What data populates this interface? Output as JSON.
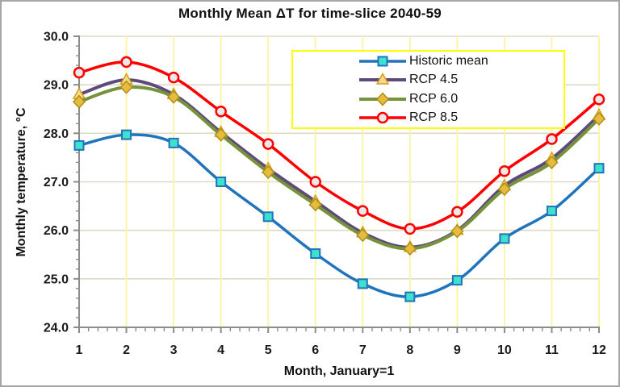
{
  "window": {
    "background": "#FFFFFF",
    "border_color": "#A6A6A6"
  },
  "chart_data": {
    "type": "line",
    "title": "Monthly Mean ΔT for time-slice 2040-59",
    "xlabel": "Month, January=1",
    "ylabel": "Monthly temperature, °C",
    "x": [
      1,
      2,
      3,
      4,
      5,
      6,
      7,
      8,
      9,
      10,
      11,
      12
    ],
    "xtick_labels": [
      "1",
      "2",
      "3",
      "4",
      "5",
      "6",
      "7",
      "8",
      "9",
      "10",
      "11",
      "12"
    ],
    "xlim": [
      1,
      12
    ],
    "ylim": [
      24.0,
      30.0
    ],
    "yticks": [
      24,
      25,
      26,
      27,
      28,
      29,
      30
    ],
    "ytick_labels": [
      "24.0",
      "25.0",
      "26.0",
      "27.0",
      "28.0",
      "29.0",
      "30.0"
    ],
    "y_minor_step": 0.2,
    "x_minor_step": 0.2,
    "grid": {
      "horizontal_on": true,
      "vertical_on": true,
      "horizontal_color": "#DEDAC6",
      "vertical_color": "#FBF4A0",
      "axis_color": "#8C8C8C",
      "tick_color": "#8C8C8C"
    },
    "legend": {
      "position": "top-right",
      "border_color": "#FFFF00",
      "background": "#FFFFFF"
    },
    "series": [
      {
        "name": "Historic mean",
        "line_color": "#2074BC",
        "line_width": 3.5,
        "marker": "square",
        "marker_fill": "#3FE0CE",
        "marker_stroke": "#2074BC",
        "values": [
          27.75,
          27.97,
          27.8,
          27.0,
          26.28,
          25.52,
          24.9,
          24.63,
          24.97,
          25.83,
          26.4,
          27.28
        ]
      },
      {
        "name": "RCP 4.5",
        "line_color": "#5F497A",
        "line_width": 4,
        "marker": "triangle",
        "marker_fill": "#F7D98C",
        "marker_stroke": "#D4A017",
        "values": [
          28.8,
          29.1,
          28.8,
          28.02,
          27.27,
          26.6,
          25.95,
          25.65,
          26.0,
          26.92,
          27.48,
          28.37
        ]
      },
      {
        "name": "RCP 6.0",
        "line_color": "#76933C",
        "line_width": 4,
        "marker": "diamond",
        "marker_fill": "#E6BC3C",
        "marker_stroke": "#B08E1B",
        "values": [
          28.65,
          28.95,
          28.75,
          27.97,
          27.2,
          26.53,
          25.9,
          25.62,
          25.98,
          26.85,
          27.4,
          28.3
        ]
      },
      {
        "name": "RCP 8.5",
        "line_color": "#FF0000",
        "line_width": 3.5,
        "marker": "circle",
        "marker_fill": "#E9E9E9",
        "marker_stroke": "#FF0000",
        "values": [
          29.25,
          29.47,
          29.15,
          28.45,
          27.78,
          27.0,
          26.4,
          26.03,
          26.38,
          27.22,
          27.88,
          28.7
        ]
      }
    ]
  }
}
